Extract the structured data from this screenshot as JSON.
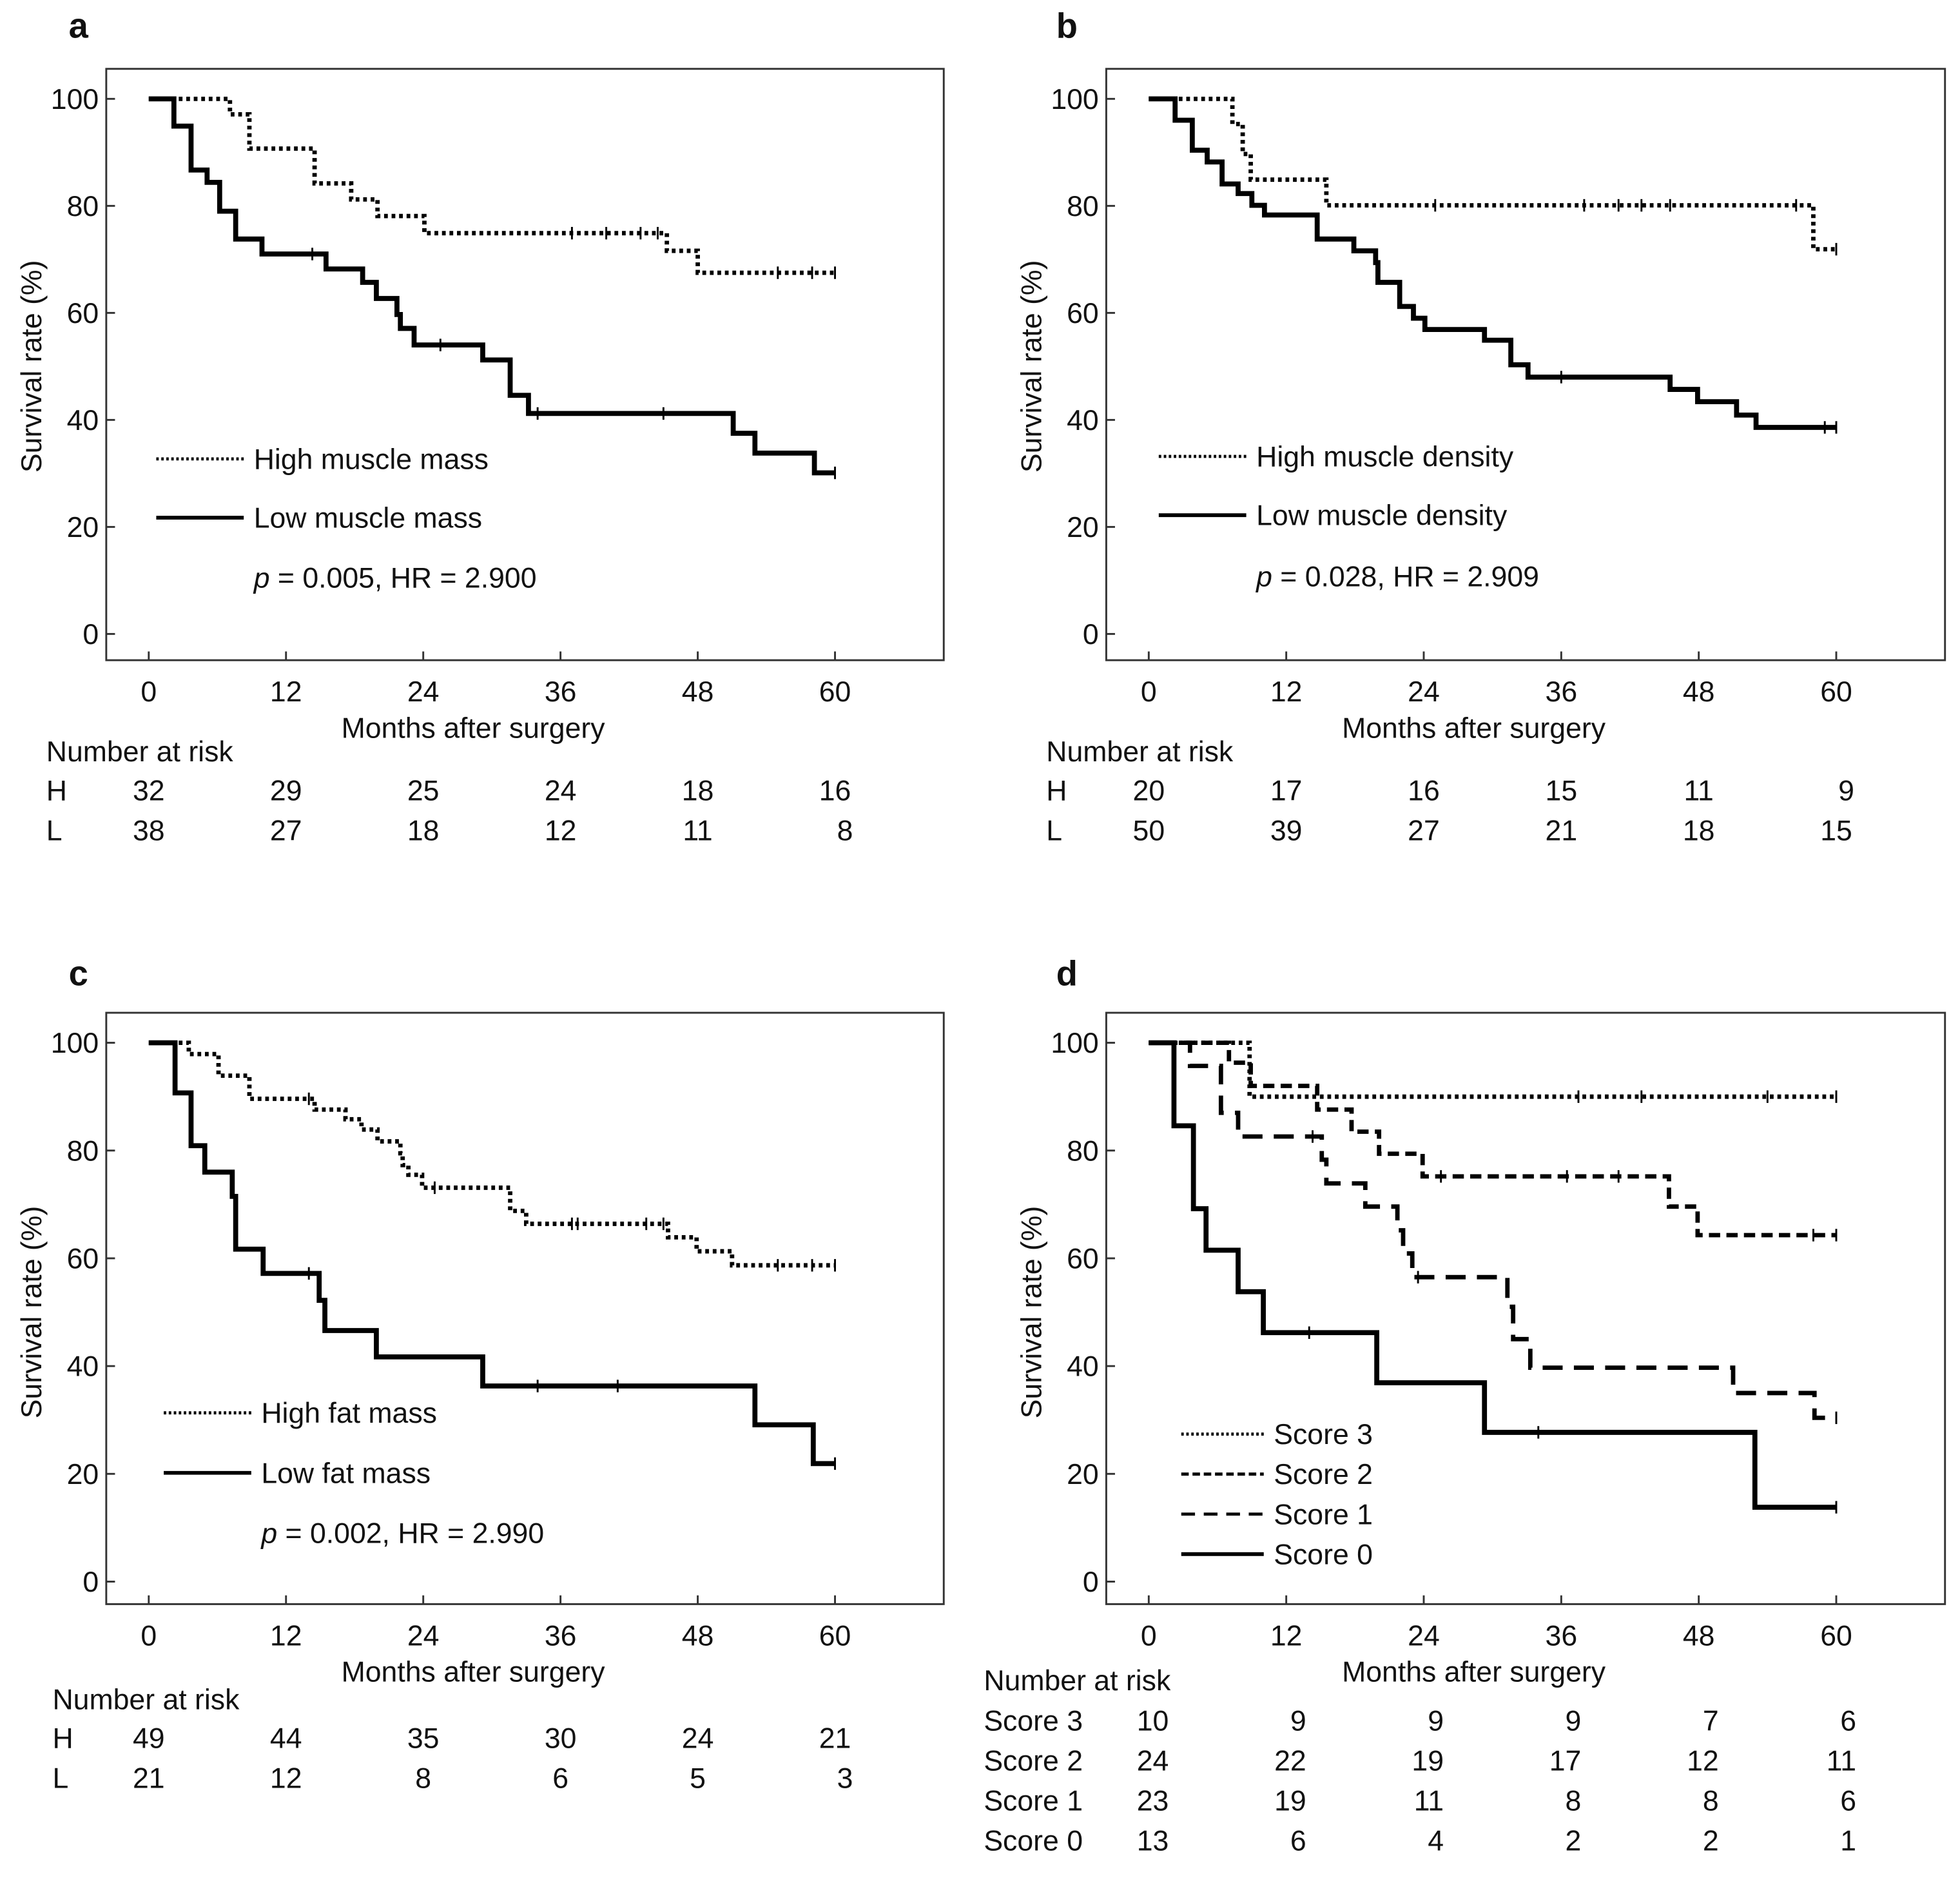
{
  "chart_data": [
    {
      "panel": "a",
      "type": "line",
      "step": true,
      "xlabel": "Months after surgery",
      "ylabel": "Survival rate (%)",
      "xlim": [
        0,
        60
      ],
      "ylim": [
        0,
        100
      ],
      "xticks": [
        "0",
        "12",
        "24",
        "36",
        "48",
        "60"
      ],
      "yticks": [
        "0",
        "20",
        "40",
        "60",
        "80",
        "100"
      ],
      "legend_position": "lower-left",
      "annotation": {
        "p": "p",
        "rest": " = 0.005, HR = 2.900"
      },
      "series": [
        {
          "name": "High muscle mass",
          "style": "dotted",
          "steps": [
            [
              0,
              100
            ],
            [
              7.1,
              97.1
            ],
            [
              8.8,
              90.7
            ],
            [
              14.5,
              84.2
            ],
            [
              17.7,
              81.2
            ],
            [
              20,
              78.1
            ],
            [
              24.1,
              74.9
            ],
            [
              45.3,
              71.6
            ],
            [
              48,
              67.5
            ]
          ],
          "censored": [
            37,
            40,
            43,
            44.5,
            55,
            58,
            60
          ],
          "end": 60
        },
        {
          "name": "Low muscle mass",
          "style": "solid",
          "steps": [
            [
              0,
              100
            ],
            [
              2.2,
              94.9
            ],
            [
              3.7,
              86.7
            ],
            [
              5.1,
              84.4
            ],
            [
              6.2,
              79
            ],
            [
              7.6,
              73.8
            ],
            [
              9.9,
              71
            ],
            [
              15.5,
              68.2
            ],
            [
              18.7,
              65.7
            ],
            [
              19.9,
              62.7
            ],
            [
              21.7,
              59.7
            ],
            [
              22,
              57.1
            ],
            [
              23.2,
              54
            ],
            [
              29.2,
              51.2
            ],
            [
              31.6,
              44.6
            ],
            [
              33.2,
              41.2
            ],
            [
              51.1,
              37.5
            ],
            [
              53,
              33.8
            ],
            [
              58.2,
              30.1
            ]
          ],
          "censored": [
            14.3,
            25.5,
            34,
            45,
            60
          ],
          "end": 60
        }
      ],
      "risk_table": {
        "title": "Number at risk",
        "rows": [
          {
            "label": "H",
            "values": [
              "32",
              "29",
              "25",
              "24",
              "18",
              "16"
            ]
          },
          {
            "label": "L",
            "values": [
              "38",
              "27",
              "18",
              "12",
              "11",
              "8"
            ]
          }
        ]
      }
    },
    {
      "panel": "b",
      "type": "line",
      "step": true,
      "xlabel": "Months after surgery",
      "ylabel": "Survival rate (%)",
      "xlim": [
        0,
        60
      ],
      "ylim": [
        0,
        100
      ],
      "xticks": [
        "0",
        "12",
        "24",
        "36",
        "48",
        "60"
      ],
      "yticks": [
        "0",
        "20",
        "40",
        "60",
        "80",
        "100"
      ],
      "legend_position": "lower-left",
      "annotation": {
        "p": "p",
        "rest": " = 0.028, HR = 2.909"
      },
      "series": [
        {
          "name": "High muscle density",
          "style": "dotted",
          "steps": [
            [
              0,
              100
            ],
            [
              7.3,
              95.3
            ],
            [
              8.2,
              89.7
            ],
            [
              8.9,
              84.9
            ],
            [
              15.5,
              80.1
            ],
            [
              58,
              71.9
            ]
          ],
          "censored": [
            25,
            38,
            41,
            43,
            45.5,
            56.5,
            60
          ],
          "end": 60
        },
        {
          "name": "Low muscle density",
          "style": "solid",
          "steps": [
            [
              0,
              100
            ],
            [
              2.3,
              96
            ],
            [
              3.8,
              90.4
            ],
            [
              5.1,
              88.2
            ],
            [
              6.4,
              84.1
            ],
            [
              7.8,
              82.3
            ],
            [
              9,
              80.1
            ],
            [
              10.1,
              78.3
            ],
            [
              14.7,
              73.8
            ],
            [
              17.9,
              71.6
            ],
            [
              19.8,
              69.4
            ],
            [
              20,
              65.7
            ],
            [
              21.9,
              61.2
            ],
            [
              23.1,
              59
            ],
            [
              24.1,
              56.9
            ],
            [
              29.3,
              54.9
            ],
            [
              31.6,
              50.3
            ],
            [
              33.1,
              48
            ],
            [
              45.5,
              45.7
            ],
            [
              47.9,
              43.4
            ],
            [
              51.3,
              40.9
            ],
            [
              53,
              38.6
            ]
          ],
          "censored": [
            36,
            59,
            60
          ],
          "end": 60
        }
      ],
      "risk_table": {
        "title": "Number at risk",
        "rows": [
          {
            "label": "H",
            "values": [
              "20",
              "17",
              "16",
              "15",
              "11",
              "9"
            ]
          },
          {
            "label": "L",
            "values": [
              "50",
              "39",
              "27",
              "21",
              "18",
              "15"
            ]
          }
        ]
      }
    },
    {
      "panel": "c",
      "type": "line",
      "step": true,
      "xlabel": "Months after surgery",
      "ylabel": "Survival rate (%)",
      "xlim": [
        0,
        60
      ],
      "ylim": [
        0,
        100
      ],
      "xticks": [
        "0",
        "12",
        "24",
        "36",
        "48",
        "60"
      ],
      "yticks": [
        "0",
        "20",
        "40",
        "60",
        "80",
        "100"
      ],
      "legend_position": "lower-left",
      "annotation": {
        "p": "p",
        "rest": " = 0.002, HR = 2.990"
      },
      "series": [
        {
          "name": "High fat mass",
          "style": "dotted",
          "steps": [
            [
              0,
              100
            ],
            [
              3.5,
              97.9
            ],
            [
              6.1,
              93.9
            ],
            [
              8.8,
              89.6
            ],
            [
              14.5,
              87.6
            ],
            [
              17.2,
              85.8
            ],
            [
              18.6,
              83.9
            ],
            [
              20,
              81.7
            ],
            [
              22,
              79.5
            ],
            [
              22.2,
              77.3
            ],
            [
              22.7,
              75.5
            ],
            [
              23.9,
              73.1
            ],
            [
              31.6,
              68.8
            ],
            [
              33,
              66.4
            ],
            [
              45.4,
              63.9
            ],
            [
              47.9,
              61.3
            ],
            [
              51,
              58.7
            ]
          ],
          "censored": [
            14,
            25,
            37,
            37.5,
            43.5,
            45,
            55,
            58,
            60
          ],
          "end": 60
        },
        {
          "name": "Low fat mass",
          "style": "solid",
          "steps": [
            [
              0,
              100
            ],
            [
              2.3,
              90.7
            ],
            [
              3.7,
              80.9
            ],
            [
              4.9,
              76
            ],
            [
              7.3,
              71.5
            ],
            [
              7.6,
              61.7
            ],
            [
              10,
              57.2
            ],
            [
              14.9,
              52.2
            ],
            [
              15.4,
              46.6
            ],
            [
              19.9,
              41.7
            ],
            [
              29.2,
              36.3
            ],
            [
              53,
              29.1
            ],
            [
              58.1,
              21.9
            ]
          ],
          "censored": [
            14,
            34,
            41,
            60
          ],
          "end": 60
        }
      ],
      "risk_table": {
        "title": "Number at risk",
        "rows": [
          {
            "label": "H",
            "values": [
              "49",
              "44",
              "35",
              "30",
              "24",
              "21"
            ]
          },
          {
            "label": "L",
            "values": [
              "21",
              "12",
              "8",
              "6",
              "5",
              "3"
            ]
          }
        ]
      }
    },
    {
      "panel": "d",
      "type": "line",
      "step": true,
      "xlabel": "Months after surgery",
      "ylabel": "Survival rate (%)",
      "xlim": [
        0,
        60
      ],
      "ylim": [
        0,
        100
      ],
      "xticks": [
        "0",
        "12",
        "24",
        "36",
        "48",
        "60"
      ],
      "yticks": [
        "0",
        "20",
        "40",
        "60",
        "80",
        "100"
      ],
      "legend_position": "lower-left",
      "series": [
        {
          "name": "Score 3",
          "style": "dotted",
          "steps": [
            [
              0,
              100
            ],
            [
              8.8,
              90
            ]
          ],
          "censored": [
            37.5,
            43,
            54,
            60
          ],
          "end": 60
        },
        {
          "name": "Score 2",
          "style": "dashed",
          "steps": [
            [
              0,
              100
            ],
            [
              7,
              96.3
            ],
            [
              8.9,
              92
            ],
            [
              14.7,
              87.6
            ],
            [
              17.7,
              83.5
            ],
            [
              20.1,
              79.4
            ],
            [
              23.9,
              75.2
            ],
            [
              45.4,
              69.6
            ],
            [
              47.9,
              64.3
            ]
          ],
          "censored": [
            25.5,
            36.5,
            41,
            58,
            60
          ],
          "end": 60
        },
        {
          "name": "Score 1",
          "style": "longdash",
          "steps": [
            [
              0,
              100
            ],
            [
              3.6,
              95.7
            ],
            [
              6.3,
              87
            ],
            [
              7.8,
              82.6
            ],
            [
              15.1,
              78.3
            ],
            [
              15.5,
              73.9
            ],
            [
              18.9,
              69.6
            ],
            [
              21.7,
              65.2
            ],
            [
              22.2,
              60.9
            ],
            [
              23,
              56.5
            ],
            [
              31.3,
              51
            ],
            [
              31.8,
              45
            ],
            [
              33.3,
              39.7
            ],
            [
              51,
              35
            ],
            [
              58.1,
              30.4
            ]
          ],
          "censored": [
            14.3,
            23.5,
            60
          ],
          "end": 60
        },
        {
          "name": "Score 0",
          "style": "solid",
          "steps": [
            [
              0,
              100
            ],
            [
              2.2,
              84.6
            ],
            [
              3.9,
              69.2
            ],
            [
              5,
              61.5
            ],
            [
              7.8,
              53.8
            ],
            [
              10,
              46.2
            ],
            [
              19.9,
              36.9
            ],
            [
              29.3,
              27.7
            ],
            [
              52.9,
              13.8
            ]
          ],
          "censored": [
            14,
            34,
            60
          ],
          "end": 60
        }
      ],
      "risk_table": {
        "title": "Number at risk",
        "rows": [
          {
            "label": "Score 3",
            "values": [
              "10",
              "9",
              "9",
              "9",
              "7",
              "6"
            ]
          },
          {
            "label": "Score 2",
            "values": [
              "24",
              "22",
              "19",
              "17",
              "12",
              "11"
            ]
          },
          {
            "label": "Score 1",
            "values": [
              "23",
              "19",
              "11",
              "8",
              "8",
              "6"
            ]
          },
          {
            "label": "Score 0",
            "values": [
              "13",
              "6",
              "4",
              "2",
              "2",
              "1"
            ]
          }
        ]
      }
    }
  ]
}
